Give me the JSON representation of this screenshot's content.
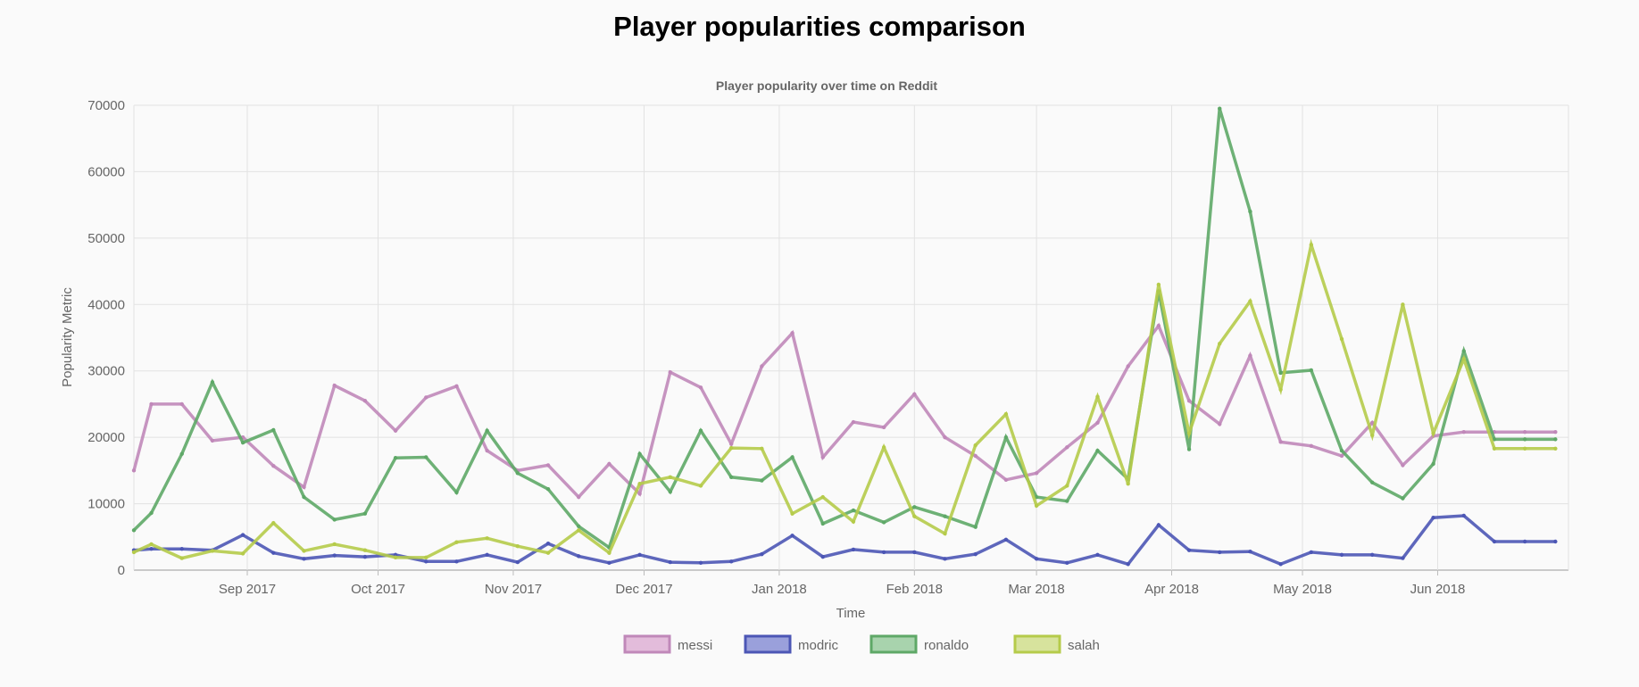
{
  "page": {
    "title": "Player popularities comparison"
  },
  "chart_data": {
    "type": "line",
    "title": "Player popularity over time on Reddit",
    "xlabel": "Time",
    "ylabel": "Popularity Metric",
    "ylim": [
      0,
      70000
    ],
    "yticks": [
      0,
      10000,
      20000,
      30000,
      40000,
      50000,
      60000,
      70000
    ],
    "xlim": [
      "2017-08-06",
      "2018-07-01"
    ],
    "xticks": [
      {
        "date": "2017-09-01",
        "label": "Sep 2017"
      },
      {
        "date": "2017-10-01",
        "label": "Oct 2017"
      },
      {
        "date": "2017-11-01",
        "label": "Nov 2017"
      },
      {
        "date": "2017-12-01",
        "label": "Dec 2017"
      },
      {
        "date": "2018-01-01",
        "label": "Jan 2018"
      },
      {
        "date": "2018-02-01",
        "label": "Feb 2018"
      },
      {
        "date": "2018-03-01",
        "label": "Mar 2018"
      },
      {
        "date": "2018-04-01",
        "label": "Apr 2018"
      },
      {
        "date": "2018-05-01",
        "label": "May 2018"
      },
      {
        "date": "2018-06-01",
        "label": "Jun 2018"
      }
    ],
    "grid": true,
    "legend": "bottom",
    "x": [
      "2017-08-06",
      "2017-08-10",
      "2017-08-17",
      "2017-08-24",
      "2017-08-31",
      "2017-09-07",
      "2017-09-14",
      "2017-09-21",
      "2017-09-28",
      "2017-10-05",
      "2017-10-12",
      "2017-10-19",
      "2017-10-26",
      "2017-11-02",
      "2017-11-09",
      "2017-11-16",
      "2017-11-23",
      "2017-11-30",
      "2017-12-07",
      "2017-12-14",
      "2017-12-21",
      "2017-12-28",
      "2018-01-04",
      "2018-01-11",
      "2018-01-18",
      "2018-01-25",
      "2018-02-01",
      "2018-02-08",
      "2018-02-15",
      "2018-02-22",
      "2018-03-01",
      "2018-03-08",
      "2018-03-15",
      "2018-03-22",
      "2018-03-29",
      "2018-04-05",
      "2018-04-12",
      "2018-04-19",
      "2018-04-26",
      "2018-05-03",
      "2018-05-10",
      "2018-05-17",
      "2018-05-24",
      "2018-05-31",
      "2018-06-07",
      "2018-06-14",
      "2018-06-21",
      "2018-06-28"
    ],
    "series": [
      {
        "name": "messi",
        "color": "#c088b9",
        "fill": "#e3bcdb",
        "values": [
          15000,
          25000,
          25000,
          19500,
          20000,
          15700,
          12500,
          27800,
          25500,
          21000,
          26000,
          27700,
          18000,
          15000,
          15800,
          11000,
          16000,
          11500,
          29800,
          27500,
          19000,
          30700,
          35700,
          17000,
          22300,
          21500,
          26500,
          20000,
          17200,
          13600,
          14600,
          18500,
          22200,
          30700,
          36800,
          25500,
          22000,
          32300,
          19300,
          18700,
          17200,
          22200,
          15800,
          20200,
          20800,
          20800,
          20800,
          20800
        ]
      },
      {
        "name": "modric",
        "color": "#4c56b5",
        "fill": "#9aa0db",
        "values": [
          3000,
          3200,
          3200,
          3000,
          5300,
          2600,
          1700,
          2200,
          2000,
          2300,
          1300,
          1300,
          2300,
          1200,
          4000,
          2100,
          1100,
          2300,
          1200,
          1100,
          1300,
          2400,
          5200,
          2000,
          3100,
          2700,
          2700,
          1700,
          2400,
          4600,
          1700,
          1100,
          2300,
          900,
          6800,
          3000,
          2700,
          2800,
          900,
          2700,
          2300,
          2300,
          1800,
          7900,
          8200,
          4300,
          4300,
          4300
        ]
      },
      {
        "name": "ronaldo",
        "color": "#5ea867",
        "fill": "#a8d3ad",
        "values": [
          6000,
          8600,
          17500,
          28300,
          19200,
          21100,
          11000,
          7600,
          8500,
          16900,
          17000,
          11700,
          21000,
          14600,
          12200,
          6600,
          3400,
          17500,
          11800,
          21000,
          14000,
          13500,
          17000,
          7000,
          9000,
          7200,
          9500,
          8100,
          6500,
          20000,
          11000,
          10400,
          18000,
          13700,
          42000,
          18200,
          69500,
          54000,
          29700,
          30100,
          18000,
          13200,
          10800,
          16000,
          33000,
          19700,
          19700,
          19700
        ]
      },
      {
        "name": "salah",
        "color": "#b5cb4a",
        "fill": "#d7e39d",
        "values": [
          2700,
          3900,
          1800,
          2900,
          2500,
          7100,
          2900,
          3900,
          3000,
          1900,
          1900,
          4200,
          4800,
          3600,
          2600,
          6000,
          2600,
          13000,
          14000,
          12700,
          18400,
          18300,
          8500,
          11000,
          7300,
          18500,
          8100,
          5500,
          18800,
          23500,
          9700,
          12700,
          26100,
          13000,
          43000,
          20600,
          34100,
          40500,
          27200,
          49000,
          34800,
          20300,
          40000,
          20600,
          31800,
          18300,
          18300,
          18300
        ]
      }
    ]
  }
}
